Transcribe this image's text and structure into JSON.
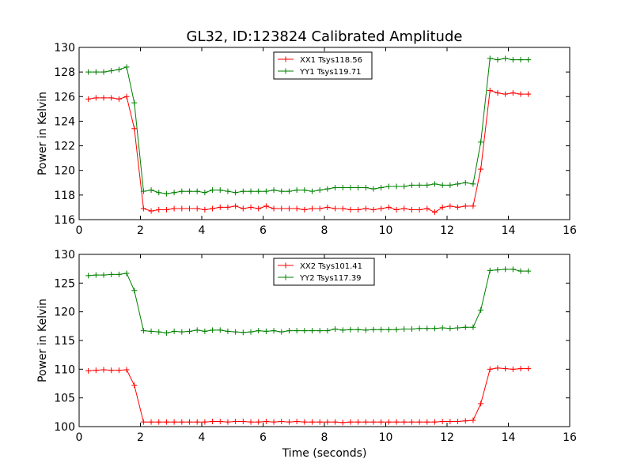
{
  "chart_data": [
    {
      "type": "line",
      "title": "GL32, ID:123824 Calibrated Amplitude",
      "xlabel": "",
      "ylabel": "Power in Kelvin",
      "xlim": [
        0,
        16
      ],
      "ylim": [
        116,
        130
      ],
      "xticks": [
        0,
        2,
        4,
        6,
        8,
        10,
        12,
        14,
        16
      ],
      "yticks": [
        116,
        118,
        120,
        122,
        124,
        126,
        128,
        130
      ],
      "grid": false,
      "legend": "top-center",
      "x": [
        0.3,
        0.55,
        0.8,
        1.05,
        1.3,
        1.55,
        1.8,
        2.1,
        2.35,
        2.6,
        2.85,
        3.1,
        3.35,
        3.6,
        3.85,
        4.1,
        4.35,
        4.6,
        4.85,
        5.1,
        5.35,
        5.6,
        5.85,
        6.1,
        6.35,
        6.6,
        6.85,
        7.1,
        7.35,
        7.6,
        7.85,
        8.1,
        8.35,
        8.6,
        8.85,
        9.1,
        9.35,
        9.6,
        9.85,
        10.1,
        10.35,
        10.6,
        10.85,
        11.1,
        11.35,
        11.6,
        11.85,
        12.1,
        12.35,
        12.6,
        12.85,
        13.1,
        13.4,
        13.65,
        13.9,
        14.15,
        14.4,
        14.65
      ],
      "series": [
        {
          "name": "XX1 Tsys118.56",
          "color": "#ff0000",
          "values": [
            125.8,
            125.9,
            125.9,
            125.9,
            125.8,
            126.0,
            123.4,
            116.9,
            116.7,
            116.8,
            116.8,
            116.9,
            116.9,
            116.9,
            116.9,
            116.8,
            116.9,
            117.0,
            117.0,
            117.1,
            116.9,
            117.0,
            116.9,
            117.1,
            116.9,
            116.9,
            116.9,
            116.9,
            116.8,
            116.9,
            116.9,
            117.0,
            116.9,
            116.9,
            116.8,
            116.8,
            116.9,
            116.8,
            116.9,
            117.0,
            116.8,
            116.9,
            116.8,
            116.8,
            116.9,
            116.6,
            117.0,
            117.1,
            117.0,
            117.1,
            117.1,
            120.1,
            126.5,
            126.3,
            126.2,
            126.3,
            126.2,
            126.2
          ]
        },
        {
          "name": "YY1 Tsys119.71",
          "color": "#008000",
          "values": [
            128.0,
            128.0,
            128.0,
            128.1,
            128.2,
            128.4,
            125.5,
            118.3,
            118.4,
            118.2,
            118.1,
            118.2,
            118.3,
            118.3,
            118.3,
            118.2,
            118.4,
            118.4,
            118.3,
            118.2,
            118.3,
            118.3,
            118.3,
            118.3,
            118.4,
            118.3,
            118.3,
            118.4,
            118.4,
            118.3,
            118.4,
            118.5,
            118.6,
            118.6,
            118.6,
            118.6,
            118.6,
            118.5,
            118.6,
            118.7,
            118.7,
            118.7,
            118.8,
            118.8,
            118.8,
            118.9,
            118.8,
            118.8,
            118.9,
            119.0,
            118.9,
            122.3,
            129.1,
            129.0,
            129.1,
            129.0,
            129.0,
            129.0
          ]
        }
      ]
    },
    {
      "type": "line",
      "title": "",
      "xlabel": "Time (seconds)",
      "ylabel": "Power in Kelvin",
      "xlim": [
        0,
        16
      ],
      "ylim": [
        100,
        130
      ],
      "xticks": [
        0,
        2,
        4,
        6,
        8,
        10,
        12,
        14,
        16
      ],
      "yticks": [
        100,
        105,
        110,
        115,
        120,
        125,
        130
      ],
      "grid": false,
      "legend": "top-center",
      "x": [
        0.3,
        0.55,
        0.8,
        1.05,
        1.3,
        1.55,
        1.8,
        2.1,
        2.35,
        2.6,
        2.85,
        3.1,
        3.35,
        3.6,
        3.85,
        4.1,
        4.35,
        4.6,
        4.85,
        5.1,
        5.35,
        5.6,
        5.85,
        6.1,
        6.35,
        6.6,
        6.85,
        7.1,
        7.35,
        7.6,
        7.85,
        8.1,
        8.35,
        8.6,
        8.85,
        9.1,
        9.35,
        9.6,
        9.85,
        10.1,
        10.35,
        10.6,
        10.85,
        11.1,
        11.35,
        11.6,
        11.85,
        12.1,
        12.35,
        12.6,
        12.85,
        13.1,
        13.4,
        13.65,
        13.9,
        14.15,
        14.4,
        14.65
      ],
      "series": [
        {
          "name": "XX2 Tsys101.41",
          "color": "#ff0000",
          "values": [
            109.7,
            109.8,
            109.9,
            109.8,
            109.8,
            109.9,
            107.2,
            100.8,
            100.8,
            100.8,
            100.8,
            100.8,
            100.8,
            100.8,
            100.8,
            100.8,
            100.9,
            100.9,
            100.8,
            100.9,
            100.9,
            100.8,
            100.8,
            100.9,
            100.8,
            100.9,
            100.8,
            100.9,
            100.8,
            100.8,
            100.8,
            100.8,
            100.8,
            100.7,
            100.8,
            100.8,
            100.8,
            100.8,
            100.8,
            100.8,
            100.8,
            100.8,
            100.8,
            100.8,
            100.8,
            100.8,
            100.9,
            100.9,
            100.9,
            101.0,
            101.1,
            104.0,
            110.0,
            110.2,
            110.1,
            110.0,
            110.1,
            110.1
          ]
        },
        {
          "name": "YY2 Tsys117.39",
          "color": "#008000",
          "values": [
            126.3,
            126.4,
            126.4,
            126.5,
            126.5,
            126.7,
            123.7,
            116.7,
            116.6,
            116.5,
            116.3,
            116.6,
            116.5,
            116.6,
            116.8,
            116.6,
            116.8,
            116.8,
            116.6,
            116.5,
            116.4,
            116.5,
            116.7,
            116.6,
            116.7,
            116.5,
            116.7,
            116.7,
            116.7,
            116.7,
            116.7,
            116.7,
            117.0,
            116.8,
            116.9,
            116.9,
            116.8,
            116.9,
            116.9,
            116.9,
            116.9,
            117.0,
            117.0,
            117.1,
            117.1,
            117.1,
            117.2,
            117.1,
            117.2,
            117.3,
            117.3,
            120.3,
            127.2,
            127.3,
            127.4,
            127.4,
            127.1,
            127.1
          ]
        }
      ]
    }
  ]
}
